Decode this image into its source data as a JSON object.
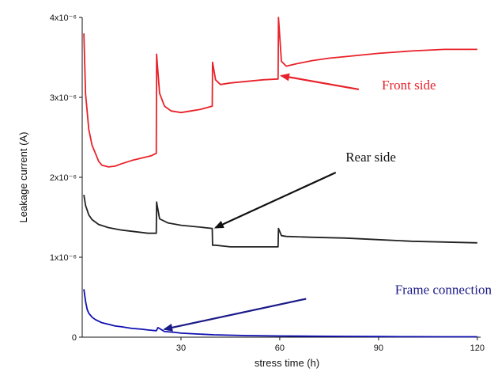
{
  "chart_data": {
    "type": "line",
    "title": "",
    "xlabel": "stress time (h)",
    "ylabel": "Leakage current (A)",
    "xlim": [
      0,
      121
    ],
    "ylim": [
      0,
      4e-06
    ],
    "x_ticks": [
      30,
      60,
      90,
      120
    ],
    "x_tick_labels": [
      "30",
      "60",
      "90",
      "120"
    ],
    "y_ticks": [
      0,
      1e-06,
      2e-06,
      3e-06,
      4e-06
    ],
    "y_tick_labels": [
      "0",
      "1x10⁻⁶",
      "2x10⁻⁶",
      "3x10⁻⁶",
      "4x10⁻⁶"
    ],
    "grid": false,
    "legend": "none",
    "series": [
      {
        "name": "Front side",
        "color": "#e8222a",
        "x": [
          0.5,
          1,
          2,
          3,
          4,
          5,
          6,
          8,
          10,
          12,
          15,
          18,
          21,
          22.5,
          22.6,
          23.5,
          25,
          27,
          30,
          33,
          36,
          39.5,
          39.6,
          40.5,
          42,
          45,
          50,
          55,
          59.5,
          59.6,
          60.5,
          62,
          65,
          70,
          75,
          80,
          90,
          100,
          110,
          120
        ],
        "y": [
          3.8e-06,
          3.05e-06,
          2.6e-06,
          2.4e-06,
          2.3e-06,
          2.2e-06,
          2.15e-06,
          2.13e-06,
          2.14e-06,
          2.17e-06,
          2.21e-06,
          2.24e-06,
          2.27e-06,
          2.3e-06,
          3.54e-06,
          3.05e-06,
          2.89e-06,
          2.83e-06,
          2.81e-06,
          2.83e-06,
          2.85e-06,
          2.89e-06,
          3.44e-06,
          3.22e-06,
          3.16e-06,
          3.18e-06,
          3.2e-06,
          3.22e-06,
          3.23e-06,
          4e-06,
          3.45e-06,
          3.39e-06,
          3.42e-06,
          3.46e-06,
          3.49e-06,
          3.51e-06,
          3.55e-06,
          3.58e-06,
          3.6e-06,
          3.6e-06
        ]
      },
      {
        "name": "Rear side",
        "color": "#222222",
        "x": [
          0.5,
          1,
          2,
          3,
          5,
          8,
          12,
          16,
          20,
          22.5,
          22.6,
          23.5,
          26,
          30,
          35,
          39.5,
          39.6,
          40.5,
          45,
          50,
          55,
          59.5,
          59.6,
          60.5,
          62,
          70,
          80,
          90,
          100,
          110,
          120
        ],
        "y": [
          1.78e-06,
          1.65e-06,
          1.53e-06,
          1.47e-06,
          1.41e-06,
          1.37e-06,
          1.34e-06,
          1.32e-06,
          1.3e-06,
          1.3e-06,
          1.69e-06,
          1.48e-06,
          1.43e-06,
          1.4e-06,
          1.38e-06,
          1.36e-06,
          1.15e-06,
          1.15e-06,
          1.13e-06,
          1.13e-06,
          1.13e-06,
          1.13e-06,
          1.36e-06,
          1.27e-06,
          1.26e-06,
          1.25e-06,
          1.24e-06,
          1.22e-06,
          1.2e-06,
          1.19e-06,
          1.18e-06
        ]
      },
      {
        "name": "Frame connection",
        "color": "#1010b0",
        "x": [
          0.5,
          1,
          1.5,
          2,
          3,
          4,
          5,
          6,
          8,
          10,
          12,
          15,
          18,
          20,
          22.5,
          23,
          25,
          28,
          30,
          35,
          40,
          45,
          50,
          60,
          70,
          80,
          90,
          100,
          110,
          120
        ],
        "y": [
          6e-07,
          4.5e-07,
          3.5e-07,
          3e-07,
          2.5e-07,
          2.2e-07,
          2e-07,
          1.8e-07,
          1.6e-07,
          1.4e-07,
          1.3e-07,
          1.1e-07,
          1e-07,
          9e-08,
          8e-08,
          1.2e-07,
          7e-08,
          6e-08,
          5e-08,
          4e-08,
          3e-08,
          2.5e-08,
          2e-08,
          1.5e-08,
          1.2e-08,
          1e-08,
          8e-09,
          6e-09,
          5e-09,
          5e-09
        ]
      }
    ],
    "annotations": [
      {
        "text": "Front side",
        "color": "#e8222a",
        "text_x": 91,
        "text_y": 3.1e-06,
        "arrow_from_x": 84,
        "arrow_from_y": 3.1e-06,
        "arrow_to_x": 60.5,
        "arrow_to_y": 3.27e-06
      },
      {
        "text": "Rear side",
        "color": "#111111",
        "text_x": 80,
        "text_y": 2.2e-06,
        "arrow_from_x": 77,
        "arrow_from_y": 2.06e-06,
        "arrow_to_x": 40.5,
        "arrow_to_y": 1.37e-06
      },
      {
        "text": "Frame connection",
        "color": "#1a1a88",
        "text_x": 95,
        "text_y": 5.4e-07,
        "arrow_from_x": 68,
        "arrow_from_y": 4.8e-07,
        "arrow_to_x": 25,
        "arrow_to_y": 1e-07
      }
    ]
  }
}
